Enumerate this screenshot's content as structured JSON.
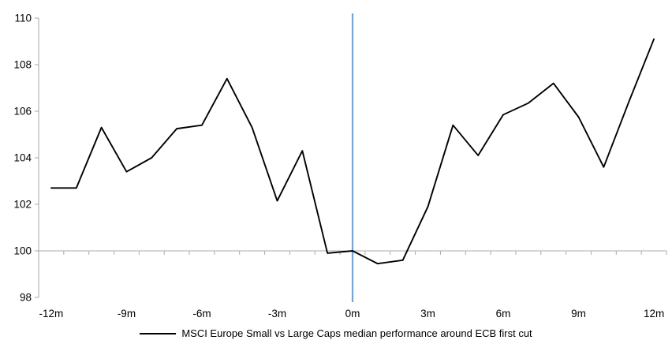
{
  "chart_data": {
    "type": "line",
    "title": "",
    "xlabel": "",
    "ylabel": "",
    "series": [
      {
        "name": "MSCI Europe Small vs Large Caps median performance around ECB first cut",
        "x": [
          -12,
          -11,
          -10,
          -9,
          -8,
          -7,
          -6,
          -5,
          -4,
          -3,
          -2,
          -1,
          0,
          1,
          2,
          3,
          4,
          5,
          6,
          7,
          8,
          9,
          10,
          11,
          12
        ],
        "values": [
          102.7,
          102.7,
          105.3,
          103.4,
          104.0,
          105.25,
          105.4,
          107.4,
          105.3,
          102.15,
          104.3,
          99.9,
          100.0,
          99.45,
          99.6,
          101.9,
          105.4,
          104.1,
          105.85,
          106.35,
          107.2,
          105.75,
          103.6,
          106.4,
          109.1
        ]
      }
    ],
    "xtick_labels": [
      "-12m",
      "-9m",
      "-6m",
      "-3m",
      "0m",
      "3m",
      "6m",
      "9m",
      "12m"
    ],
    "xtick_positions": [
      -12,
      -9,
      -6,
      -3,
      0,
      3,
      6,
      9,
      12
    ],
    "yticks": [
      98,
      100,
      102,
      104,
      106,
      108,
      110
    ],
    "ylim": [
      98,
      110
    ],
    "axis_cross_y": 100,
    "event_line_x": 0,
    "grid": "off",
    "legend_position": "bottom-center",
    "colors": {
      "series_line": "#000000",
      "event_line": "#75A6D1",
      "axis": "#A6A6A6",
      "baseline": "#ABABAB",
      "text": "#000000"
    }
  }
}
